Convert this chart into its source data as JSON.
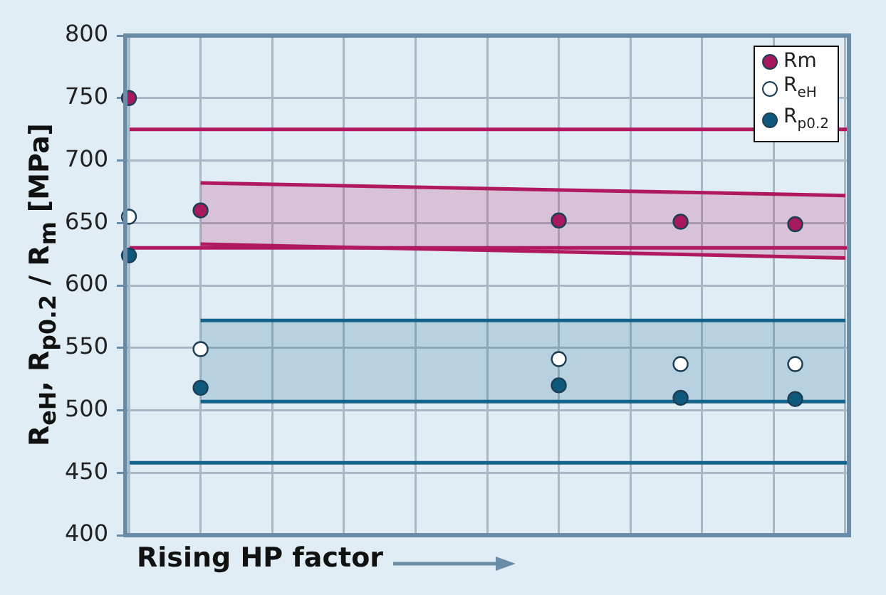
{
  "chart_data": {
    "type": "scatter",
    "xlabel": "Rising HP factor",
    "ylabel": "R$_{eH}$, R$_{p0.2}$ / R$_{m}$ [MPa]",
    "categories": [
      null,
      null,
      null,
      null,
      null,
      null,
      null,
      null,
      null,
      null,
      null,
      null,
      null,
      null,
      null,
      null,
      null,
      null,
      null,
      null,
      null,
      null,
      null,
      null,
      null,
      null,
      null,
      null,
      null,
      null,
      null,
      null,
      null,
      null,
      null,
      null,
      null,
      null,
      null,
      null,
      null,
      null,
      null,
      null,
      null,
      null,
      null,
      null,
      null,
      null,
      null,
      null,
      null,
      null,
      null,
      null,
      null,
      null,
      null,
      null,
      null,
      null,
      null,
      null,
      null,
      null,
      null,
      null,
      null,
      null,
      null,
      null,
      null,
      null,
      null,
      null,
      null,
      null,
      null,
      null,
      null,
      null,
      null,
      null,
      null,
      null,
      null,
      null,
      null,
      null,
      null,
      null,
      null,
      null,
      null,
      null,
      null,
      null,
      null,
      null,
      null
    ],
    "ylim": [
      400,
      800
    ],
    "yticks": [
      400,
      450,
      500,
      550,
      600,
      650,
      700,
      750,
      800
    ],
    "tick_labels": "y",
    "grid": true,
    "legend": "top right",
    "ref_lines": [
      {
        "axis": "y",
        "value": 725,
        "color": "#b0195f"
      },
      {
        "axis": "y",
        "value": 630,
        "color": "#b0195f"
      },
      {
        "axis": "y",
        "value": 458,
        "color": "#14638c"
      }
    ],
    "series": [
      {
        "type": "line",
        "color": "#b0195f",
        "values": [
          null,
          null,
          null,
          null,
          null,
          null,
          null,
          null,
          null,
          null,
          682,
          null,
          null,
          null,
          null,
          null,
          null,
          null,
          null,
          null,
          null,
          null,
          null,
          null,
          null,
          null,
          null,
          null,
          null,
          null,
          null,
          null,
          null,
          null,
          null,
          null,
          null,
          null,
          null,
          null,
          null,
          null,
          null,
          null,
          null,
          null,
          null,
          null,
          null,
          null,
          null,
          null,
          null,
          null,
          null,
          null,
          null,
          null,
          null,
          null,
          null,
          null,
          null,
          null,
          null,
          null,
          null,
          null,
          null,
          null,
          null,
          null,
          null,
          null,
          null,
          null,
          null,
          null,
          null,
          null,
          null,
          null,
          null,
          null,
          null,
          null,
          null,
          null,
          null,
          null,
          null,
          null,
          null,
          null,
          null,
          null,
          null,
          null,
          null,
          null,
          672
        ],
        "lower": [
          null,
          null,
          null,
          null,
          null,
          null,
          null,
          null,
          null,
          null,
          633,
          null,
          null,
          null,
          null,
          null,
          null,
          null,
          null,
          null,
          null,
          null,
          null,
          null,
          null,
          null,
          null,
          null,
          null,
          null,
          null,
          null,
          null,
          null,
          null,
          null,
          null,
          null,
          null,
          null,
          null,
          null,
          null,
          null,
          null,
          null,
          null,
          null,
          null,
          null,
          null,
          null,
          null,
          null,
          null,
          null,
          null,
          null,
          null,
          null,
          null,
          null,
          null,
          null,
          null,
          null,
          null,
          null,
          null,
          null,
          null,
          null,
          null,
          null,
          null,
          null,
          null,
          null,
          null,
          null,
          null,
          null,
          null,
          null,
          null,
          null,
          null,
          null,
          null,
          null,
          null,
          null,
          null,
          null,
          null,
          null,
          null,
          null,
          null,
          null,
          622
        ],
        "upper": [
          null,
          null,
          null,
          null,
          null,
          null,
          null,
          null,
          null,
          null,
          682,
          null,
          null,
          null,
          null,
          null,
          null,
          null,
          null,
          null,
          null,
          null,
          null,
          null,
          null,
          null,
          null,
          null,
          null,
          null,
          null,
          null,
          null,
          null,
          null,
          null,
          null,
          null,
          null,
          null,
          null,
          null,
          null,
          null,
          null,
          null,
          null,
          null,
          null,
          null,
          null,
          null,
          null,
          null,
          null,
          null,
          null,
          null,
          null,
          null,
          null,
          null,
          null,
          null,
          null,
          null,
          null,
          null,
          null,
          null,
          null,
          null,
          null,
          null,
          null,
          null,
          null,
          null,
          null,
          null,
          null,
          null,
          null,
          null,
          null,
          null,
          null,
          null,
          null,
          null,
          null,
          null,
          null,
          null,
          null,
          null,
          null,
          null,
          null,
          null,
          672
        ]
      },
      {
        "type": "line",
        "color": "#b0195f",
        "values": [
          null,
          null,
          null,
          null,
          null,
          null,
          null,
          null,
          null,
          null,
          633,
          null,
          null,
          null,
          null,
          null,
          null,
          null,
          null,
          null,
          null,
          null,
          null,
          null,
          null,
          null,
          null,
          null,
          null,
          null,
          null,
          null,
          null,
          null,
          null,
          null,
          null,
          null,
          null,
          null,
          null,
          null,
          null,
          null,
          null,
          null,
          null,
          null,
          null,
          null,
          null,
          null,
          null,
          null,
          null,
          null,
          null,
          null,
          null,
          null,
          null,
          null,
          null,
          null,
          null,
          null,
          null,
          null,
          null,
          null,
          null,
          null,
          null,
          null,
          null,
          null,
          null,
          null,
          null,
          null,
          null,
          null,
          null,
          null,
          null,
          null,
          null,
          null,
          null,
          null,
          null,
          null,
          null,
          null,
          null,
          null,
          null,
          null,
          null,
          null,
          622
        ]
      },
      {
        "type": "line",
        "color": "#14638c",
        "values": [
          null,
          null,
          null,
          null,
          null,
          null,
          null,
          null,
          null,
          null,
          572,
          null,
          null,
          null,
          null,
          null,
          null,
          null,
          null,
          null,
          null,
          null,
          null,
          null,
          null,
          null,
          null,
          null,
          null,
          null,
          null,
          null,
          null,
          null,
          null,
          null,
          null,
          null,
          null,
          null,
          null,
          null,
          null,
          null,
          null,
          null,
          null,
          null,
          null,
          null,
          null,
          null,
          null,
          null,
          null,
          null,
          null,
          null,
          null,
          null,
          null,
          null,
          null,
          null,
          null,
          null,
          null,
          null,
          null,
          null,
          null,
          null,
          null,
          null,
          null,
          null,
          null,
          null,
          null,
          null,
          null,
          null,
          null,
          null,
          null,
          null,
          null,
          null,
          null,
          null,
          null,
          null,
          null,
          null,
          null,
          null,
          null,
          null,
          null,
          null,
          572
        ],
        "lower": [
          null,
          null,
          null,
          null,
          null,
          null,
          null,
          null,
          null,
          null,
          507,
          null,
          null,
          null,
          null,
          null,
          null,
          null,
          null,
          null,
          null,
          null,
          null,
          null,
          null,
          null,
          null,
          null,
          null,
          null,
          null,
          null,
          null,
          null,
          null,
          null,
          null,
          null,
          null,
          null,
          null,
          null,
          null,
          null,
          null,
          null,
          null,
          null,
          null,
          null,
          null,
          null,
          null,
          null,
          null,
          null,
          null,
          null,
          null,
          null,
          null,
          null,
          null,
          null,
          null,
          null,
          null,
          null,
          null,
          null,
          null,
          null,
          null,
          null,
          null,
          null,
          null,
          null,
          null,
          null,
          null,
          null,
          null,
          null,
          null,
          null,
          null,
          null,
          null,
          null,
          null,
          null,
          null,
          null,
          null,
          null,
          null,
          null,
          null,
          null,
          507
        ],
        "upper": [
          null,
          null,
          null,
          null,
          null,
          null,
          null,
          null,
          null,
          null,
          572,
          null,
          null,
          null,
          null,
          null,
          null,
          null,
          null,
          null,
          null,
          null,
          null,
          null,
          null,
          null,
          null,
          null,
          null,
          null,
          null,
          null,
          null,
          null,
          null,
          null,
          null,
          null,
          null,
          null,
          null,
          null,
          null,
          null,
          null,
          null,
          null,
          null,
          null,
          null,
          null,
          null,
          null,
          null,
          null,
          null,
          null,
          null,
          null,
          null,
          null,
          null,
          null,
          null,
          null,
          null,
          null,
          null,
          null,
          null,
          null,
          null,
          null,
          null,
          null,
          null,
          null,
          null,
          null,
          null,
          null,
          null,
          null,
          null,
          null,
          null,
          null,
          null,
          null,
          null,
          null,
          null,
          null,
          null,
          null,
          null,
          null,
          null,
          null,
          null,
          572
        ]
      },
      {
        "type": "line",
        "color": "#14638c",
        "values": [
          null,
          null,
          null,
          null,
          null,
          null,
          null,
          null,
          null,
          null,
          507,
          null,
          null,
          null,
          null,
          null,
          null,
          null,
          null,
          null,
          null,
          null,
          null,
          null,
          null,
          null,
          null,
          null,
          null,
          null,
          null,
          null,
          null,
          null,
          null,
          null,
          null,
          null,
          null,
          null,
          null,
          null,
          null,
          null,
          null,
          null,
          null,
          null,
          null,
          null,
          null,
          null,
          null,
          null,
          null,
          null,
          null,
          null,
          null,
          null,
          null,
          null,
          null,
          null,
          null,
          null,
          null,
          null,
          null,
          null,
          null,
          null,
          null,
          null,
          null,
          null,
          null,
          null,
          null,
          null,
          null,
          null,
          null,
          null,
          null,
          null,
          null,
          null,
          null,
          null,
          null,
          null,
          null,
          null,
          null,
          null,
          null,
          null,
          null,
          null,
          507
        ]
      },
      {
        "name": "Rm",
        "marker": "circle",
        "color": "#a8185c",
        "values": [
          750,
          null,
          null,
          null,
          null,
          null,
          null,
          null,
          null,
          null,
          660,
          null,
          null,
          null,
          null,
          null,
          null,
          null,
          null,
          null,
          null,
          null,
          null,
          null,
          null,
          null,
          null,
          null,
          null,
          null,
          null,
          null,
          null,
          null,
          null,
          null,
          null,
          null,
          null,
          null,
          null,
          null,
          null,
          null,
          null,
          null,
          null,
          null,
          null,
          null,
          null,
          null,
          null,
          null,
          null,
          null,
          null,
          null,
          null,
          null,
          652,
          null,
          null,
          null,
          null,
          null,
          null,
          null,
          null,
          null,
          null,
          null,
          null,
          null,
          null,
          null,
          null,
          651,
          null,
          null,
          null,
          null,
          null,
          null,
          null,
          null,
          null,
          null,
          null,
          null,
          null,
          null,
          null,
          649,
          null,
          null,
          null,
          null,
          null,
          null,
          null
        ]
      },
      {
        "name": "R$_{eH}$",
        "marker": "circle",
        "color": "#ffffff",
        "values": [
          655,
          null,
          null,
          null,
          null,
          null,
          null,
          null,
          null,
          null,
          549,
          null,
          null,
          null,
          null,
          null,
          null,
          null,
          null,
          null,
          null,
          null,
          null,
          null,
          null,
          null,
          null,
          null,
          null,
          null,
          null,
          null,
          null,
          null,
          null,
          null,
          null,
          null,
          null,
          null,
          null,
          null,
          null,
          null,
          null,
          null,
          null,
          null,
          null,
          null,
          null,
          null,
          null,
          null,
          null,
          null,
          null,
          null,
          null,
          null,
          541,
          null,
          null,
          null,
          null,
          null,
          null,
          null,
          null,
          null,
          null,
          null,
          null,
          null,
          null,
          null,
          null,
          537,
          null,
          null,
          null,
          null,
          null,
          null,
          null,
          null,
          null,
          null,
          null,
          null,
          null,
          null,
          null,
          537,
          null,
          null,
          null,
          null,
          null,
          null,
          null
        ]
      },
      {
        "name": "R$_{p0.2}$",
        "marker": "circle",
        "color": "#0f5a7c",
        "values": [
          624,
          null,
          null,
          null,
          null,
          null,
          null,
          null,
          null,
          null,
          518,
          null,
          null,
          null,
          null,
          null,
          null,
          null,
          null,
          null,
          null,
          null,
          null,
          null,
          null,
          null,
          null,
          null,
          null,
          null,
          null,
          null,
          null,
          null,
          null,
          null,
          null,
          null,
          null,
          null,
          null,
          null,
          null,
          null,
          null,
          null,
          null,
          null,
          null,
          null,
          null,
          null,
          null,
          null,
          null,
          null,
          null,
          null,
          null,
          null,
          520,
          null,
          null,
          null,
          null,
          null,
          null,
          null,
          null,
          null,
          null,
          null,
          null,
          null,
          null,
          null,
          null,
          510,
          null,
          null,
          null,
          null,
          null,
          null,
          null,
          null,
          null,
          null,
          null,
          null,
          null,
          null,
          null,
          509,
          null,
          null,
          null,
          null,
          null,
          null,
          null
        ]
      }
    ]
  }
}
